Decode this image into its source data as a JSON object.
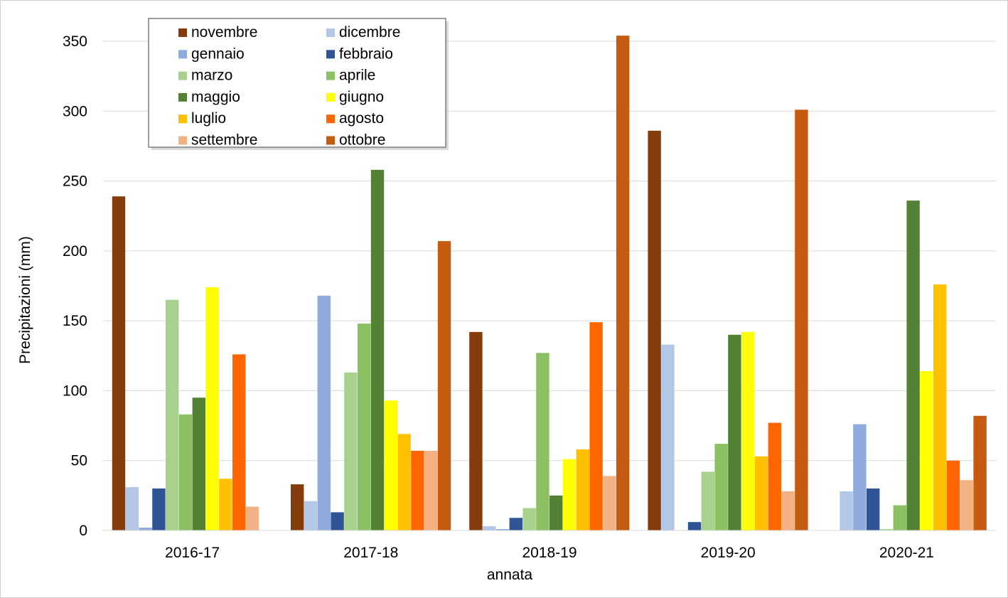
{
  "chart_data": {
    "type": "bar",
    "title": "",
    "xlabel": "annata",
    "ylabel": "Precipitazioni (mm)",
    "ylim": [
      0,
      350
    ],
    "yticks": [
      0,
      50,
      100,
      150,
      200,
      250,
      300,
      350
    ],
    "grid": "horizontal",
    "legend_position": "top-left",
    "categories": [
      "2016-17",
      "2017-18",
      "2018-19",
      "2019-20",
      "2020-21"
    ],
    "series": [
      {
        "name": "novembre",
        "color": "#843C0C",
        "values": [
          239,
          33,
          142,
          286,
          0
        ]
      },
      {
        "name": "dicembre",
        "color": "#B4C7E7",
        "values": [
          31,
          21,
          3,
          133,
          28
        ]
      },
      {
        "name": "gennaio",
        "color": "#8FAADC",
        "values": [
          2,
          168,
          1,
          0,
          76
        ]
      },
      {
        "name": "febbraio",
        "color": "#2F5597",
        "values": [
          30,
          13,
          9,
          6,
          30
        ]
      },
      {
        "name": "marzo",
        "color": "#A9D18E",
        "values": [
          165,
          113,
          16,
          42,
          1
        ]
      },
      {
        "name": "aprile",
        "color": "#8BC063",
        "values": [
          83,
          148,
          127,
          62,
          18
        ]
      },
      {
        "name": "maggio",
        "color": "#548235",
        "values": [
          95,
          258,
          25,
          140,
          236
        ]
      },
      {
        "name": "giugno",
        "color": "#FFFF00",
        "values": [
          174,
          93,
          51,
          142,
          114
        ]
      },
      {
        "name": "luglio",
        "color": "#FFC000",
        "values": [
          37,
          69,
          58,
          53,
          176
        ]
      },
      {
        "name": "agosto",
        "color": "#FF6600",
        "values": [
          126,
          57,
          149,
          77,
          50
        ]
      },
      {
        "name": "settembre",
        "color": "#F4B183",
        "values": [
          17,
          57,
          39,
          28,
          36
        ]
      },
      {
        "name": "ottobre",
        "color": "#C55A11",
        "values": [
          0,
          207,
          354,
          301,
          82
        ]
      }
    ]
  }
}
